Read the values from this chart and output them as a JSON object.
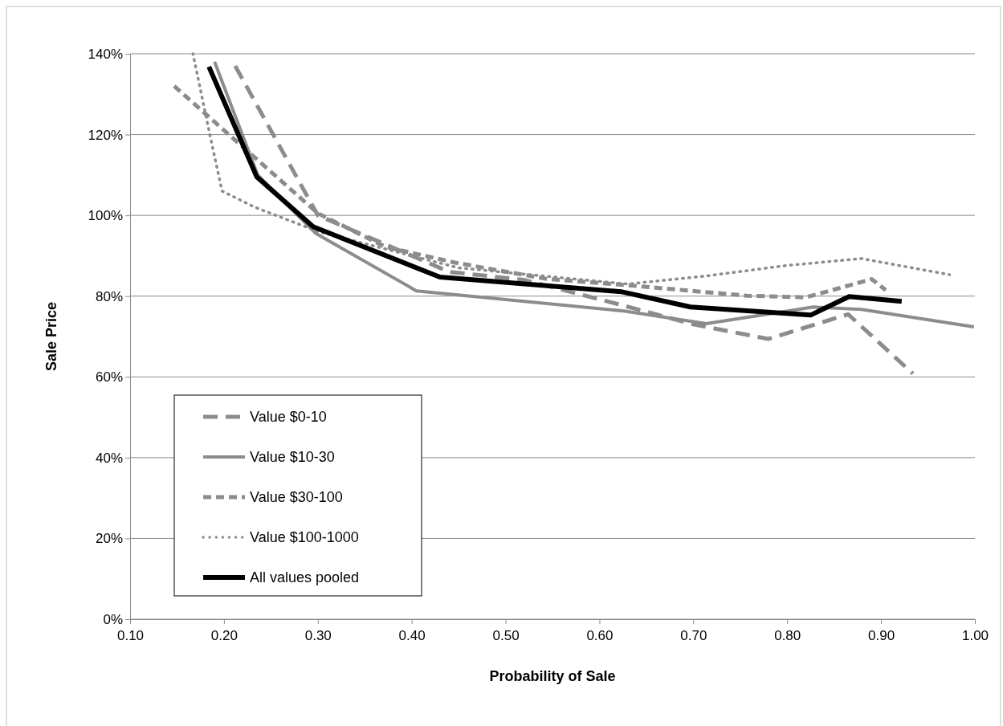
{
  "chart_data": {
    "type": "line",
    "xlabel": "Probability of Sale",
    "ylabel": "Sale Price",
    "xlim": [
      0.1,
      1.0
    ],
    "xticks": [
      {
        "value": 0.1,
        "label": "0.10"
      },
      {
        "value": 0.2,
        "label": "0.20"
      },
      {
        "value": 0.3,
        "label": "0.30"
      },
      {
        "value": 0.4,
        "label": "0.40"
      },
      {
        "value": 0.5,
        "label": "0.50"
      },
      {
        "value": 0.6,
        "label": "0.60"
      },
      {
        "value": 0.7,
        "label": "0.70"
      },
      {
        "value": 0.8,
        "label": "0.80"
      },
      {
        "value": 0.9,
        "label": "0.90"
      },
      {
        "value": 1.0,
        "label": "1.00"
      }
    ],
    "ylim": [
      0,
      140
    ],
    "yticks": [
      {
        "value": 0,
        "label": "0%"
      },
      {
        "value": 20,
        "label": "20%"
      },
      {
        "value": 40,
        "label": "40%"
      },
      {
        "value": 60,
        "label": "60%"
      },
      {
        "value": 80,
        "label": "80%"
      },
      {
        "value": 100,
        "label": "100%"
      },
      {
        "value": 120,
        "label": "120%"
      },
      {
        "value": 140,
        "label": "140%"
      }
    ],
    "grid": "y",
    "legend": "bottom left",
    "marker": "none",
    "series": [
      {
        "name": "Value $0-10",
        "color": "#8c8c8c",
        "line_style": "dashed",
        "x": [
          0.212,
          0.3,
          0.44,
          0.52,
          0.62,
          0.7,
          0.78,
          0.865,
          0.934
        ],
        "values": [
          137,
          100,
          86,
          84,
          78,
          73,
          69.4,
          75.5,
          60.8
        ]
      },
      {
        "name": "Value $10-30",
        "color": "#8c8c8c",
        "line_style": "solid",
        "x": [
          0.19,
          0.236,
          0.298,
          0.405,
          0.626,
          0.714,
          0.828,
          0.879,
          0.999
        ],
        "values": [
          138,
          110,
          95.5,
          81.3,
          76.3,
          73.2,
          77.3,
          76.7,
          72.4
        ]
      },
      {
        "name": "Value $30-100",
        "color": "#8c8c8c",
        "line_style": "dashed",
        "x": [
          0.147,
          0.3,
          0.372,
          0.446,
          0.543,
          0.63,
          0.757,
          0.82,
          0.89,
          0.905
        ],
        "values": [
          132,
          100.5,
          92.2,
          88.3,
          84.3,
          82.7,
          80.1,
          79.7,
          84.2,
          81.5
        ]
      },
      {
        "name": "Value $100-1000",
        "color": "#8c8c8c",
        "line_style": "dotted",
        "x": [
          0.167,
          0.184,
          0.198,
          0.233,
          0.3,
          0.45,
          0.63,
          0.714,
          0.8,
          0.879,
          0.973
        ],
        "values": [
          140,
          121,
          106,
          102,
          96,
          87,
          83,
          85,
          87.6,
          89.3,
          85.3
        ]
      },
      {
        "name": "All values pooled",
        "color": "#000000",
        "line_style": "solid",
        "x": [
          0.184,
          0.235,
          0.295,
          0.43,
          0.623,
          0.697,
          0.825,
          0.866,
          0.922
        ],
        "values": [
          136.8,
          109.5,
          97.2,
          84.7,
          81.1,
          77.3,
          75.3,
          79.9,
          78.7
        ]
      }
    ]
  }
}
